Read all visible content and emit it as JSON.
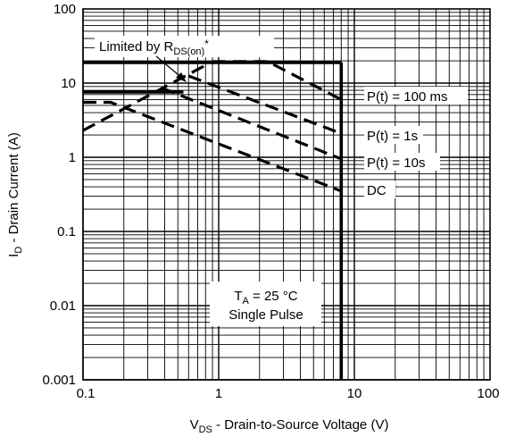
{
  "chart_data": {
    "type": "line",
    "x_scale": "log",
    "y_scale": "log",
    "xlim": [
      0.1,
      100
    ],
    "ylim": [
      0.001,
      100
    ],
    "x_ticks": [
      "0.1",
      "1",
      "10",
      "100"
    ],
    "y_ticks": [
      "100",
      "10",
      "1",
      "0.1",
      "0.01",
      "0.001"
    ],
    "xlabel": {
      "main": "V",
      "sub": "DS",
      "rest": " - Drain-to-Source Voltage (V)"
    },
    "ylabel": {
      "main": "I",
      "sub": "D",
      "rest": " - Drain Current (A)"
    },
    "grid": true,
    "colors": {
      "line": "#000000",
      "grid": "#000000",
      "background": "#ffffff"
    },
    "series": [
      {
        "name": "Limited by RDS(on)*",
        "style": "dashed",
        "x": [
          0.1,
          0.9
        ],
        "y": [
          2.3,
          19.5
        ]
      },
      {
        "name": "P(t) = 100 ms",
        "style": "dashed",
        "x": [
          0.9,
          2.3,
          8.0
        ],
        "y": [
          19.5,
          19.5,
          6.0
        ]
      },
      {
        "name": "P(t) = 1s",
        "style": "dashed",
        "x": [
          0.6,
          8.0
        ],
        "y": [
          12.5,
          2.1
        ]
      },
      {
        "name": "P(t) = 10s",
        "style": "dashed",
        "x": [
          0.38,
          8.0
        ],
        "y": [
          8.6,
          0.95
        ]
      },
      {
        "name": "DC",
        "style": "dashed",
        "x": [
          0.1,
          0.16,
          8.0
        ],
        "y": [
          5.5,
          5.5,
          0.35
        ]
      },
      {
        "name": "Max ID",
        "style": "solid",
        "x": [
          0.1,
          8.0
        ],
        "y": [
          19.0,
          19.0
        ]
      },
      {
        "name": "Max ID pulse",
        "style": "solid",
        "x": [
          0.1,
          0.55
        ],
        "y": [
          7.6,
          7.6
        ]
      },
      {
        "name": "VDS limit",
        "style": "solid",
        "x": [
          8.0,
          8.0
        ],
        "y": [
          19.0,
          0.001
        ]
      }
    ],
    "annotations": {
      "limited": {
        "text": "Limited by R",
        "sub": "DS(on)",
        "tail": "*"
      },
      "p100ms": "P(t) = 100 ms",
      "p1s": "P(t) = 1s",
      "p10s": "P(t) = 10s",
      "dc": "DC",
      "ta_line1": {
        "main": "T",
        "sub": "A",
        "rest": " = 25 °C"
      },
      "ta_line2": "Single Pulse"
    }
  }
}
